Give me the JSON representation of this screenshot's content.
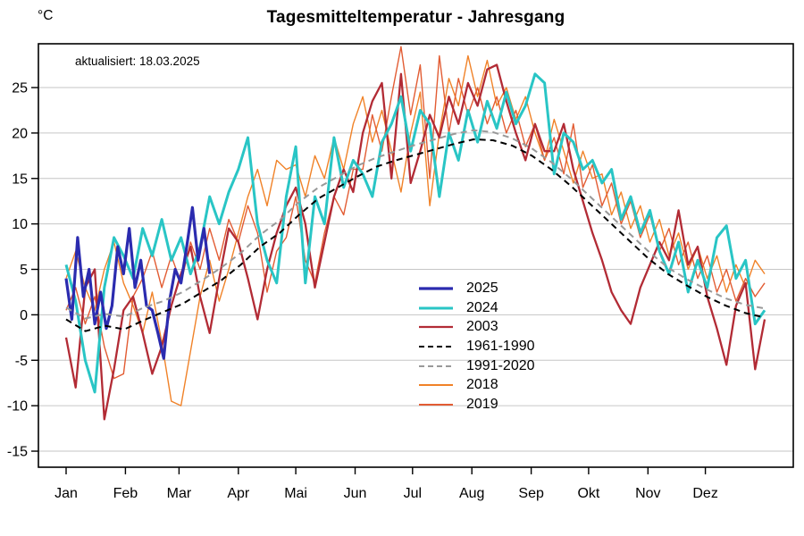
{
  "title": "Tagesmitteltemperatur - Jahresgang",
  "unit_label": "°C",
  "annotation": "aktualisiert: 18.03.2025",
  "chart_data": {
    "type": "line",
    "title": "Tagesmitteltemperatur - Jahresgang",
    "xlabel": "",
    "ylabel": "°C",
    "x_unit": "day_of_year",
    "ylim": [
      -17,
      29.8
    ],
    "yticks": [
      -15,
      -10,
      -5,
      0,
      5,
      10,
      15,
      20,
      25
    ],
    "grid": "horizontal-gridlines",
    "grid_color": "#c6c6c6",
    "xtick_labels": [
      "Jan",
      "Feb",
      "Mar",
      "Apr",
      "Mai",
      "Jun",
      "Jul",
      "Aug",
      "Sep",
      "Okt",
      "Nov",
      "Dez"
    ],
    "month_start_days": [
      1,
      32,
      60,
      91,
      121,
      152,
      182,
      213,
      244,
      274,
      305,
      335
    ],
    "legend_position": "inside-center-right",
    "series": [
      {
        "name": "2025",
        "color": "#2b2baf",
        "width": 3.2,
        "dash": null,
        "z": 5,
        "start_day": 1,
        "step": 3,
        "values": [
          4,
          -0.5,
          8.5,
          2,
          5,
          -1,
          2.5,
          -1.5,
          1,
          7.5,
          4.5,
          9.5,
          3,
          6,
          1,
          0.5,
          -2,
          -4.8,
          1.5,
          5,
          3.5,
          7.5,
          11.8,
          6,
          9.5,
          4.5
        ]
      },
      {
        "name": "2024",
        "color": "#29c5c5",
        "width": 3,
        "dash": null,
        "z": 4,
        "start_day": 1,
        "step": 5,
        "values": [
          5.5,
          1.5,
          -5,
          -8.5,
          3,
          8.5,
          6.5,
          4,
          9.5,
          6.5,
          10.5,
          6,
          8.5,
          4.5,
          7.5,
          13,
          10,
          13.5,
          16,
          19.5,
          10,
          6,
          3.5,
          13,
          18.5,
          3.5,
          13,
          10,
          19.5,
          14,
          17,
          15.5,
          13,
          19,
          21,
          24,
          18,
          22.5,
          21,
          13,
          20,
          17,
          22.5,
          19,
          23.5,
          20.5,
          24.5,
          21,
          23,
          26.5,
          25.5,
          15.5,
          20,
          19,
          16,
          17,
          14.5,
          16,
          10.5,
          13,
          9,
          11.5,
          7,
          4.5,
          8,
          2.5,
          6,
          3,
          8.5,
          9.8,
          4,
          6,
          -1,
          0.5
        ]
      },
      {
        "name": "2003",
        "color": "#b22b35",
        "width": 2.3,
        "dash": null,
        "z": 3,
        "start_day": 1,
        "step": 5,
        "values": [
          -2.5,
          -8,
          3,
          5,
          -11.5,
          -6,
          0.5,
          2,
          -2,
          -6.5,
          -3.5,
          1,
          4.5,
          7.5,
          2,
          -2,
          4,
          9.5,
          8,
          4,
          -0.5,
          5,
          9,
          12,
          14,
          10,
          3,
          8,
          13,
          16,
          13.5,
          20,
          23.5,
          25.5,
          15,
          26.5,
          14.5,
          18,
          22,
          19.5,
          24,
          21,
          25.5,
          23,
          27,
          27.5,
          23.5,
          20,
          17,
          21,
          18,
          18,
          21,
          16,
          12.5,
          9,
          6,
          2.5,
          0.5,
          -1,
          3,
          5.5,
          8,
          6,
          11.5,
          5.5,
          7.5,
          2,
          -1.5,
          -5.5,
          1,
          3.5,
          -6,
          -0.5
        ]
      },
      {
        "name": "1961-1990",
        "color": "#000000",
        "width": 2,
        "dash": "7 5",
        "z": 7,
        "start_day": 1,
        "step": 10.14,
        "values": [
          -0.5,
          -1.8,
          -1.2,
          -1.6,
          -0.6,
          0.3,
          1.2,
          2.5,
          3.8,
          5.5,
          7.5,
          9,
          11,
          12.8,
          14,
          15.2,
          16.3,
          17,
          17.6,
          18.2,
          18.8,
          19.3,
          19.2,
          18.6,
          17.5,
          16,
          14.2,
          12.2,
          10.2,
          8.2,
          6.2,
          4.5,
          3.2,
          2,
          1,
          0.2,
          -0.3
        ]
      },
      {
        "name": "1991-2020",
        "color": "#999999",
        "width": 2,
        "dash": "7 5",
        "z": 6,
        "start_day": 1,
        "step": 10.14,
        "values": [
          0.8,
          -0.4,
          0.1,
          -0.2,
          0.8,
          1.5,
          2.5,
          3.8,
          5.2,
          6.8,
          8.8,
          10.4,
          12.4,
          14,
          15.2,
          16.4,
          17.3,
          18,
          18.7,
          19.3,
          19.9,
          20.3,
          20.1,
          19.4,
          18.3,
          16.8,
          15,
          13,
          11,
          9,
          7,
          5.2,
          3.9,
          2.8,
          1.8,
          1.1,
          0.7
        ]
      },
      {
        "name": "2018",
        "color": "#f08228",
        "width": 1.4,
        "dash": null,
        "z": 1,
        "start_day": 1,
        "step": 5,
        "values": [
          4,
          7,
          3,
          0.5,
          5,
          8,
          3.5,
          1,
          -2,
          2.5,
          -3,
          -9.5,
          -10,
          -4,
          2,
          6,
          1.5,
          5,
          9,
          13,
          16,
          12,
          17,
          16,
          16.5,
          13,
          17.5,
          15,
          19.5,
          16,
          21,
          24,
          19,
          22.5,
          18,
          13.5,
          20,
          24.5,
          12,
          20,
          26,
          23,
          28.5,
          24,
          28,
          23,
          25,
          21.5,
          24,
          20,
          17,
          21.5,
          18,
          14.5,
          18,
          15,
          15.5,
          11,
          13.5,
          9.5,
          12,
          8,
          10.5,
          6.5,
          9,
          5,
          7.5,
          4,
          6.5,
          2.5,
          5.5,
          3,
          6,
          4.5
        ]
      },
      {
        "name": "2019",
        "color": "#e25c33",
        "width": 1.4,
        "dash": null,
        "z": 2,
        "start_day": 1,
        "step": 5,
        "values": [
          0.5,
          3,
          -1,
          2,
          -3.5,
          -7,
          -6.5,
          2,
          4,
          7,
          3,
          6.5,
          3.5,
          8,
          5,
          9.5,
          6,
          10.5,
          8,
          12,
          9,
          2.5,
          7,
          8.5,
          13,
          6,
          3.5,
          9,
          13,
          11,
          16,
          16,
          22,
          18,
          24,
          29.5,
          22,
          27.5,
          15,
          28.5,
          20,
          26,
          22,
          25,
          21,
          24,
          20,
          22.5,
          18.5,
          21,
          17,
          19.5,
          15.5,
          21,
          14,
          16.5,
          12,
          14.5,
          10,
          12.5,
          8.5,
          11,
          7,
          9.5,
          5.5,
          8,
          4,
          6.5,
          2.5,
          5,
          1.5,
          4,
          2,
          3.5
        ]
      }
    ]
  }
}
